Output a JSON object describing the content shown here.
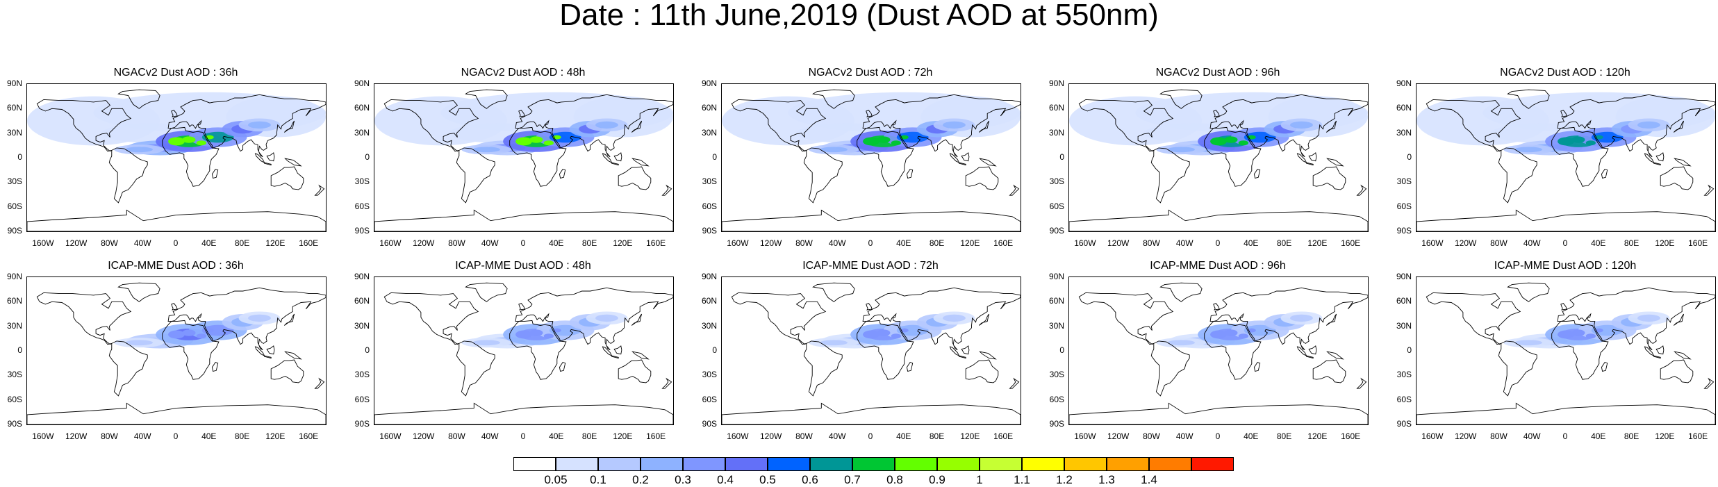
{
  "title": "Date : 11th June,2019 (Dust AOD at 550nm)",
  "lat_ticks": [
    "90N",
    "60N",
    "30N",
    "0",
    "30S",
    "60S",
    "90S"
  ],
  "lon_ticks": [
    "160W",
    "120W",
    "80W",
    "40W",
    "0",
    "40E",
    "80E",
    "120E",
    "160E"
  ],
  "panels": [
    {
      "title": "NGACv2 Dust AOD : 36h",
      "model": "NGACv2",
      "intensity": 1.0
    },
    {
      "title": "NGACv2 Dust AOD : 48h",
      "model": "NGACv2",
      "intensity": 0.95
    },
    {
      "title": "NGACv2 Dust AOD : 72h",
      "model": "NGACv2",
      "intensity": 0.9
    },
    {
      "title": "NGACv2 Dust AOD : 96h",
      "model": "NGACv2",
      "intensity": 0.85
    },
    {
      "title": "NGACv2 Dust AOD : 120h",
      "model": "NGACv2",
      "intensity": 0.8
    },
    {
      "title": "ICAP-MME Dust AOD : 36h",
      "model": "ICAP-MME",
      "intensity": 0.7
    },
    {
      "title": "ICAP-MME Dust AOD : 48h",
      "model": "ICAP-MME",
      "intensity": 0.6
    },
    {
      "title": "ICAP-MME Dust AOD : 72h",
      "model": "ICAP-MME",
      "intensity": 0.6
    },
    {
      "title": "ICAP-MME Dust AOD : 96h",
      "model": "ICAP-MME",
      "intensity": 0.55
    },
    {
      "title": "ICAP-MME Dust AOD : 120h",
      "model": "ICAP-MME",
      "intensity": 0.55
    }
  ],
  "colorbar": {
    "labels": [
      "0.05",
      "0.1",
      "0.2",
      "0.3",
      "0.4",
      "0.5",
      "0.6",
      "0.7",
      "0.8",
      "0.9",
      "1",
      "1.1",
      "1.2",
      "1.3",
      "1.4"
    ],
    "colors": [
      "#ffffff",
      "#d6e2ff",
      "#b5c9ff",
      "#8eb2ff",
      "#7f96ff",
      "#6370f8",
      "#0063ff",
      "#009696",
      "#00c633",
      "#63ff00",
      "#96ff00",
      "#c6ff33",
      "#ffff00",
      "#ffc600",
      "#ffa000",
      "#ff7c00",
      "#ff1900"
    ]
  }
}
